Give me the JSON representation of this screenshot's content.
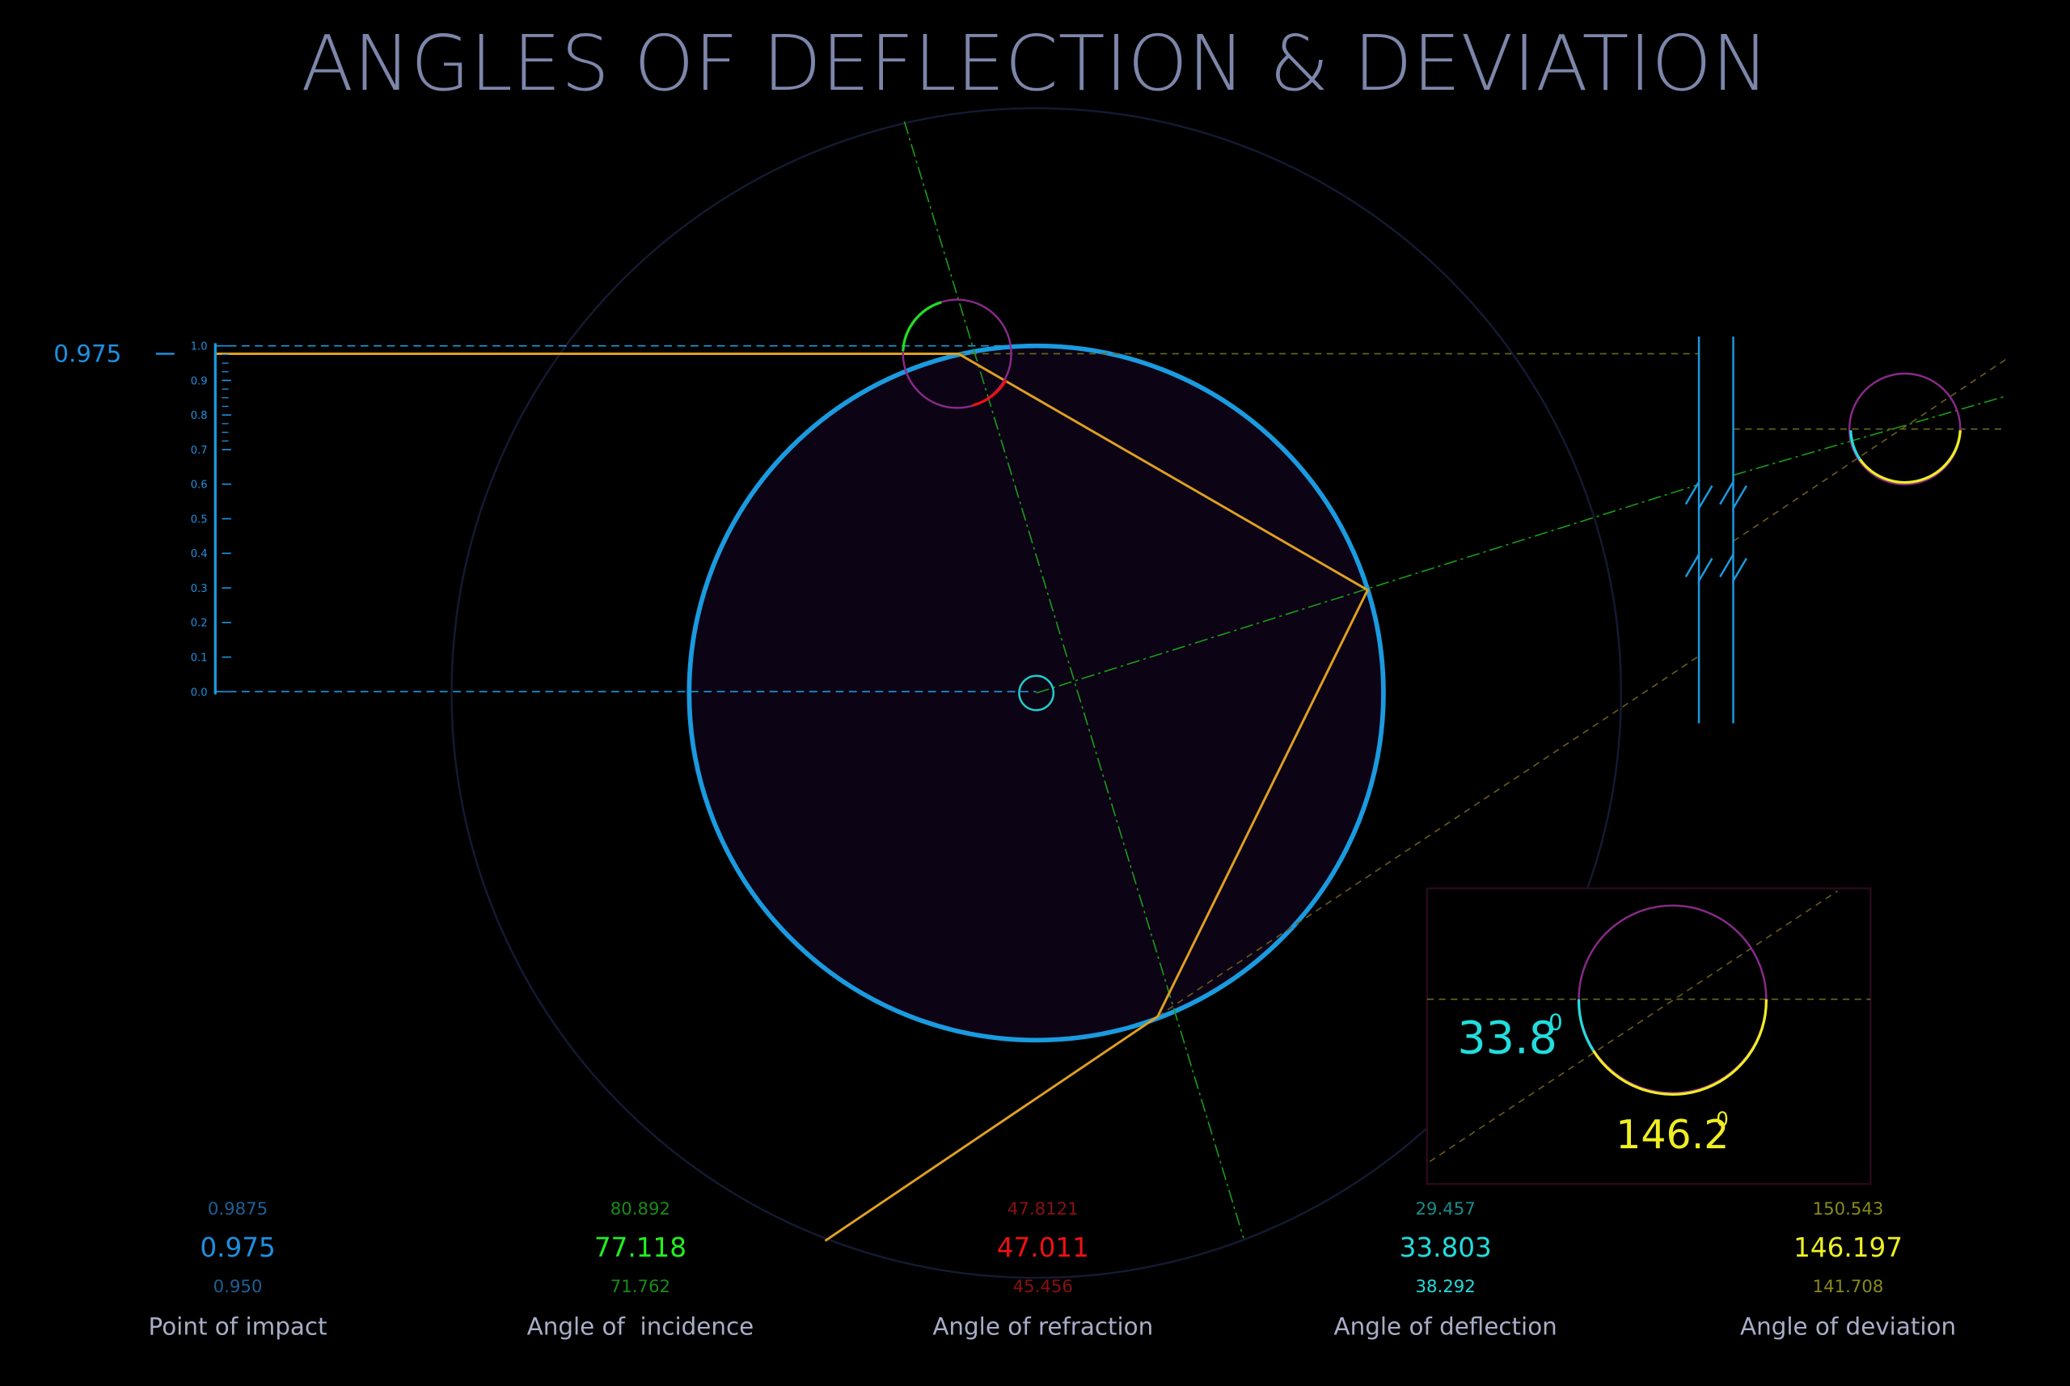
{
  "title": "ANGLES OF DEFLECTION & DEVIATION",
  "impact_marker": "0.975",
  "scale": [
    "1.0",
    "0.9",
    "0.8",
    "0.7",
    "0.6",
    "0.5",
    "0.4",
    "0.3",
    "0.2",
    "0.1",
    "0.0"
  ],
  "readouts": [
    {
      "upper": "0.9875",
      "value": "0.975",
      "lower": "0.950",
      "label": "Point of impact"
    },
    {
      "upper": "80.892",
      "value": "77.118",
      "lower": "71.762",
      "label": "Angle of  incidence"
    },
    {
      "upper": "47.8121",
      "value": "47.011",
      "lower": "45.456",
      "label": "Angle of refraction"
    },
    {
      "upper": "29.457",
      "value": "33.803",
      "lower": "38.292",
      "label": "Angle of deflection"
    },
    {
      "upper": "150.543",
      "value": "146.197",
      "lower": "141.708",
      "label": "Angle of deviation"
    }
  ],
  "inset": {
    "deflection": "33.8",
    "deviation": "146.2",
    "degree_mark": "0"
  }
}
